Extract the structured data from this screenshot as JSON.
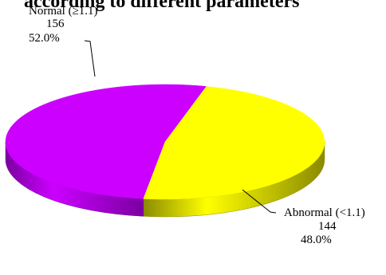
{
  "chart_data": {
    "type": "pie",
    "title": "according to different parameters",
    "style": "3d-tilted",
    "slices": [
      {
        "name": "Normal (≥1.1)",
        "count": "156",
        "percent": "52.0%",
        "value": 52.0,
        "color": "#cc00ff",
        "side_color": "#7a00a0"
      },
      {
        "name": "Abnormal (<1.1)",
        "count": "144",
        "percent": "48.0%",
        "value": 48.0,
        "color": "#ffff00",
        "side_color": "#8a8a00"
      }
    ],
    "legend": "none",
    "labels_with_leader_lines": true
  }
}
